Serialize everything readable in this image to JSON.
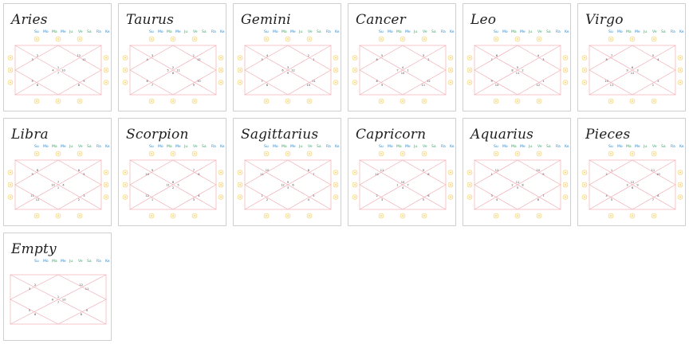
{
  "colors": {
    "grid": "#f0aeb6",
    "circle_stroke": "#f3cf6b",
    "circle_fill": "#fff9e5",
    "planet_blue": "#2f8ccf",
    "planet_green": "#3fa56a",
    "planet_red": "#e0463c",
    "title": "#1f1f1f"
  },
  "planet_labels": [
    "Su",
    "Mo",
    "Ma",
    "Me",
    "Ju",
    "Ve",
    "Sa",
    "Ra",
    "Ke"
  ],
  "charts": [
    {
      "title": "Aries",
      "houses": [
        "1",
        "2",
        "3",
        "4",
        "5",
        "6",
        "7",
        "8",
        "9",
        "10",
        "11",
        "12"
      ]
    },
    {
      "title": "Taurus",
      "houses": [
        "2",
        "3",
        "4",
        "5",
        "6",
        "7",
        "8",
        "9",
        "10",
        "11",
        "12",
        "1"
      ]
    },
    {
      "title": "Gemini",
      "houses": [
        "3",
        "4",
        "5",
        "6",
        "7",
        "8",
        "9",
        "10",
        "11",
        "12",
        "1",
        "2"
      ]
    },
    {
      "title": "Cancer",
      "houses": [
        "4",
        "5",
        "6",
        "7",
        "8",
        "9",
        "10",
        "11",
        "12",
        "1",
        "2",
        "3"
      ]
    },
    {
      "title": "Leo",
      "houses": [
        "5",
        "6",
        "7",
        "8",
        "9",
        "10",
        "11",
        "12",
        "1",
        "2",
        "3",
        "4"
      ]
    },
    {
      "title": "Virgo",
      "houses": [
        "6",
        "7",
        "8",
        "9",
        "10",
        "11",
        "12",
        "1",
        "2",
        "3",
        "4",
        "5"
      ]
    },
    {
      "title": "Libra",
      "houses": [
        "7",
        "8",
        "9",
        "10",
        "11",
        "12",
        "1",
        "2",
        "3",
        "4",
        "5",
        "6"
      ]
    },
    {
      "title": "Scorpion",
      "houses": [
        "8",
        "9",
        "10",
        "11",
        "12",
        "1",
        "2",
        "3",
        "4",
        "5",
        "6",
        "7"
      ]
    },
    {
      "title": "Sagittarius",
      "houses": [
        "9",
        "10",
        "11",
        "12",
        "1",
        "2",
        "3",
        "4",
        "5",
        "6",
        "7",
        "8"
      ]
    },
    {
      "title": "Capricorn",
      "houses": [
        "10",
        "11",
        "12",
        "1",
        "2",
        "3",
        "4",
        "5",
        "6",
        "7",
        "8",
        "9"
      ]
    },
    {
      "title": "Aquarius",
      "houses": [
        "11",
        "12",
        "1",
        "2",
        "3",
        "4",
        "5",
        "6",
        "7",
        "8",
        "9",
        "10"
      ]
    },
    {
      "title": "Pieces",
      "houses": [
        "12",
        "1",
        "2",
        "3",
        "4",
        "5",
        "6",
        "7",
        "8",
        "9",
        "10",
        "11"
      ]
    },
    {
      "title": "Empty",
      "houses": [
        "1",
        "2",
        "3",
        "4",
        "5",
        "6",
        "7",
        "8",
        "9",
        "10",
        "11",
        "12"
      ]
    }
  ]
}
